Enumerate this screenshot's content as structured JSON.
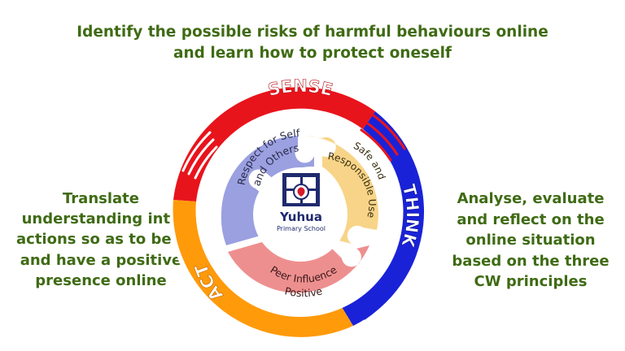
{
  "top_caption": {
    "line1": "Identify the possible risks of harmful behaviours online",
    "line2": "and learn how to protect oneself"
  },
  "left_caption": {
    "lines": [
      "Translate",
      "understanding into",
      "actions so as to be safe",
      "and have a positive",
      "presence online"
    ]
  },
  "right_caption": {
    "lines": [
      "Analyse, evaluate",
      "and reflect on the",
      "online situation",
      "based on the three",
      "CW principles"
    ]
  },
  "ring": {
    "sense": "SENSE",
    "think": "THINK",
    "act": "ACT",
    "colors": {
      "sense": "#e8141c",
      "think": "#1a22d8",
      "act": "#ff9a0a"
    }
  },
  "puzzle": {
    "respect_line1": "Respect for Self",
    "respect_line2": "and Others",
    "safe_line1": "Safe and",
    "safe_line2": "Responsible Use",
    "peer_line1": "Peer Influence",
    "peer_line2": "Positive",
    "colors": {
      "respect": "#9aa0e0",
      "safe": "#f8d488",
      "peer": "#ee8f8f"
    }
  },
  "logo": {
    "name": "Yuhua",
    "subtitle": "Primary School"
  },
  "caption_color": "#3f6b14"
}
